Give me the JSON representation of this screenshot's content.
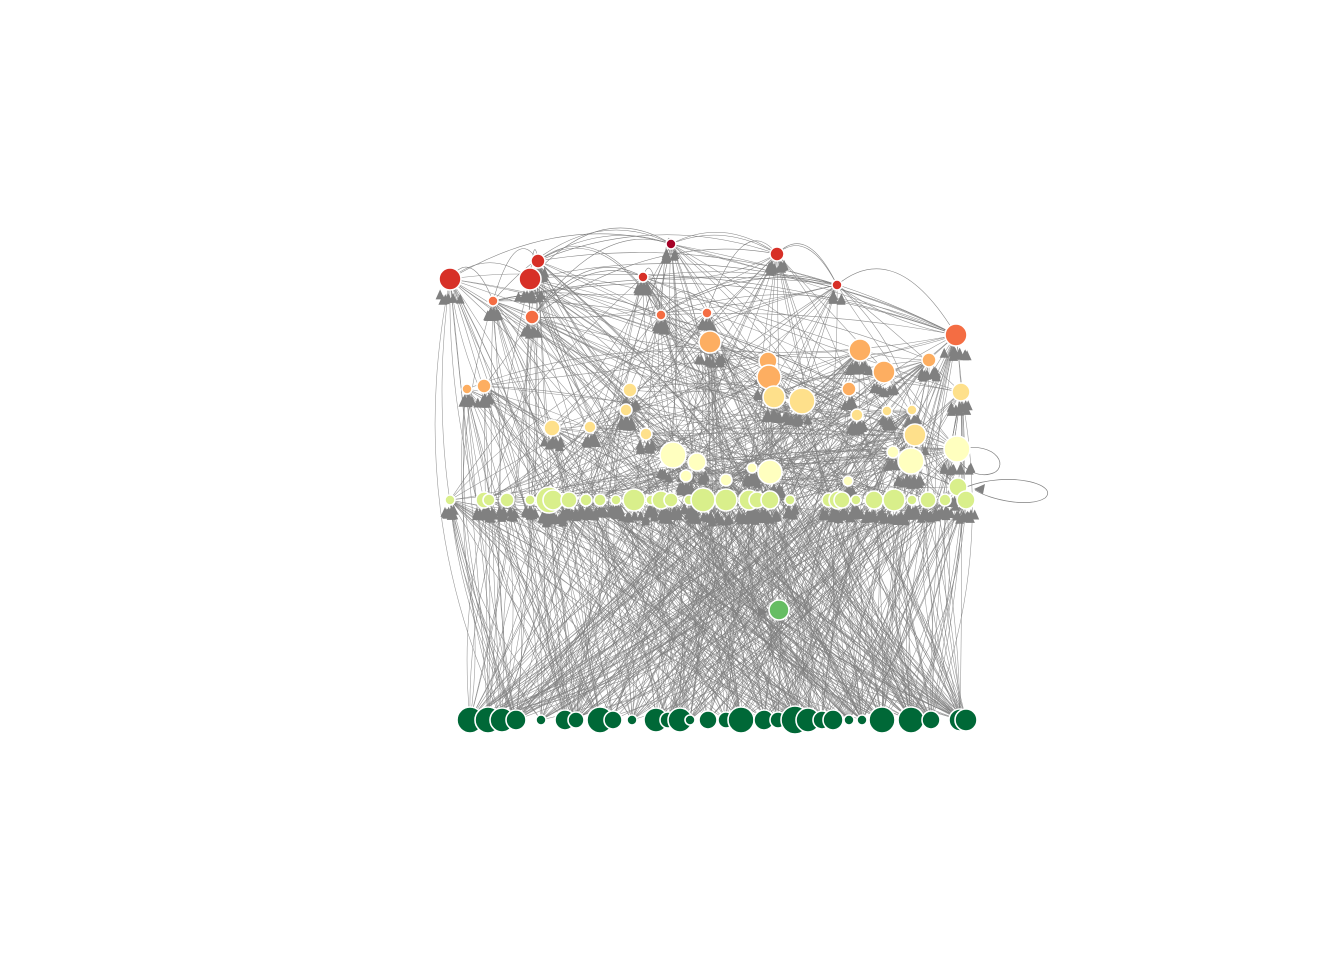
{
  "diagram": {
    "type": "directed-network",
    "layout": "trophic-levels",
    "edge_color": "#808080",
    "node_stroke": "#ffffff",
    "level_colors": [
      "#006837",
      "#66bd63",
      "#d9ef8b",
      "#ffffbf",
      "#fee08b",
      "#fdae61",
      "#f46d43",
      "#d73027",
      "#a50026"
    ],
    "self_loops": 2
  }
}
